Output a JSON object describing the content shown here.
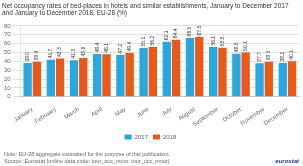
{
  "chart_data": {
    "type": "bar",
    "title": "Net occupancy rates of bed-places in hotels and similar establishments, January to December 2017 and January to December 2018, EU-28 (%)",
    "categories": [
      "January",
      "February",
      "March",
      "April",
      "May",
      "June",
      "July",
      "August",
      "September",
      "October",
      "November",
      "December"
    ],
    "series": [
      {
        "name": "2017",
        "color": "#29A8E0",
        "values": [
          38.0,
          41.7,
          41.3,
          48.4,
          47.2,
          55.1,
          62.1,
          66.5,
          56.1,
          48.5,
          37.7,
          38.1
        ],
        "value_labels": [
          "38.0",
          "41.7",
          "41.3",
          "48.4",
          "47.2",
          "55.1",
          "62.1",
          "66.5",
          "56.1",
          "48.5",
          "37.7",
          "38.1"
        ]
      },
      {
        "name": "2018",
        "color": "#E8591A",
        "values": [
          39.4,
          43.3,
          43.8,
          48.1,
          49.4,
          56.2,
          64.4,
          67.5,
          55.5,
          50.1,
          39.5,
          40.1
        ],
        "value_labels": [
          "39.4",
          "43.3",
          "43.8",
          "48.1",
          "49.4",
          "56.2",
          "64.4",
          "67.5",
          "55.5",
          "50.1",
          "39.5",
          "40.1"
        ]
      }
    ],
    "ylim": [
      0,
      80
    ],
    "yticks": [
      0,
      10,
      20,
      30,
      40,
      50,
      60,
      70,
      80
    ],
    "grid": true,
    "legend": "bottom",
    "data_labels": true,
    "annotations": [
      "Note: EU-28 aggregate estimated for the purpose of this publication.",
      "Source: Eurostat (online data code: tour_occ_mnor, tour_occ_mnor)",
      "eurostat"
    ]
  }
}
